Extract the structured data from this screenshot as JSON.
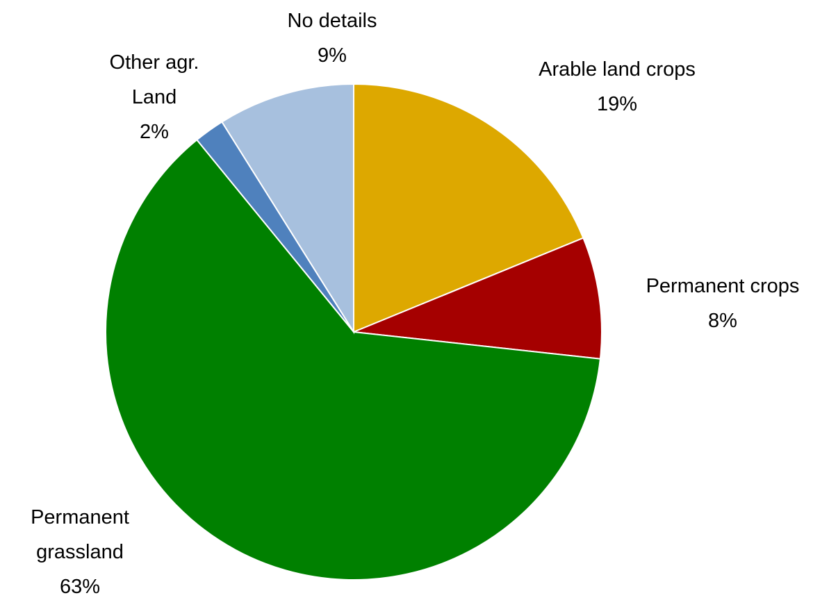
{
  "chart_data": {
    "type": "pie",
    "categories": [
      "Arable land crops",
      "Permanent crops",
      "Permanent grassland",
      "Other agr. Land",
      "No details"
    ],
    "values": [
      19,
      8,
      63,
      2,
      9
    ],
    "value_labels": [
      "19%",
      "8%",
      "63%",
      "2%",
      "9%"
    ],
    "colors": [
      "#DDA800",
      "#A50000",
      "#008000",
      "#4F81BD",
      "#A7C0DE"
    ]
  }
}
